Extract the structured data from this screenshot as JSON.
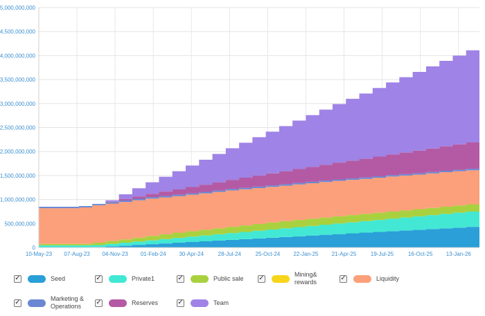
{
  "chart_data": {
    "type": "area",
    "stacked": true,
    "title": "",
    "xlabel": "",
    "ylabel": "",
    "ylim": [
      0,
      5000000000
    ],
    "y_ticks": [
      0,
      500000000,
      1000000000,
      1500000000,
      2000000000,
      2500000000,
      3000000000,
      3500000000,
      4000000000,
      4500000000,
      5000000000
    ],
    "y_tick_labels": [
      "0",
      "500,000,000",
      "1,000,000,000",
      "1,500,000,000",
      "2,000,000,000",
      "2,500,000,000",
      "3,000,000,000",
      "3,500,000,000",
      "4,000,000,000",
      "4,500,000,000",
      "5,000,000,000"
    ],
    "x_tick_labels": [
      "10-May-23",
      "07-Aug-23",
      "04-Nov-23",
      "01-Feb-24",
      "30-Apr-24",
      "28-Jul-24",
      "25-Oct-24",
      "22-Jan-25",
      "21-Apr-25",
      "19-Jul-25",
      "16-Oct-25",
      "13-Jan-26"
    ],
    "x": [
      "May-23",
      "Jun-23",
      "Jul-23",
      "Aug-23",
      "Sep-23",
      "Oct-23",
      "Nov-23",
      "Dec-23",
      "Jan-24",
      "Feb-24",
      "Mar-24",
      "Apr-24",
      "May-24",
      "Jun-24",
      "Jul-24",
      "Aug-24",
      "Sep-24",
      "Oct-24",
      "Nov-24",
      "Dec-24",
      "Jan-25",
      "Feb-25",
      "Mar-25",
      "Apr-25",
      "May-25",
      "Jun-25",
      "Jul-25",
      "Aug-25",
      "Sep-25",
      "Oct-25",
      "Nov-25",
      "Dec-25",
      "Jan-26",
      "Feb-26"
    ],
    "grid": true,
    "series": [
      {
        "name": "Seed",
        "color": "#2a9fd8",
        "values": [
          5000000,
          5000000,
          5000000,
          5000000,
          10000000,
          25000000,
          40000000,
          55000000,
          70000000,
          85000000,
          100000000,
          115000000,
          130000000,
          145000000,
          160000000,
          175000000,
          190000000,
          205000000,
          220000000,
          235000000,
          250000000,
          265000000,
          280000000,
          295000000,
          310000000,
          325000000,
          340000000,
          355000000,
          370000000,
          385000000,
          400000000,
          415000000,
          430000000,
          445000000
        ]
      },
      {
        "name": "Private1",
        "color": "#43e8d4",
        "values": [
          40000000,
          40000000,
          40000000,
          40000000,
          40000000,
          50000000,
          60000000,
          70000000,
          80000000,
          90000000,
          100000000,
          110000000,
          120000000,
          130000000,
          140000000,
          150000000,
          160000000,
          170000000,
          180000000,
          190000000,
          200000000,
          210000000,
          220000000,
          230000000,
          240000000,
          250000000,
          260000000,
          270000000,
          280000000,
          290000000,
          300000000,
          310000000,
          320000000,
          330000000
        ]
      },
      {
        "name": "Public sale",
        "color": "#a9d13f",
        "values": [
          30000000,
          30000000,
          30000000,
          30000000,
          50000000,
          60000000,
          70000000,
          80000000,
          90000000,
          100000000,
          110000000,
          115000000,
          120000000,
          125000000,
          130000000,
          135000000,
          140000000,
          145000000,
          150000000,
          150000000,
          150000000,
          150000000,
          150000000,
          150000000,
          150000000,
          150000000,
          150000000,
          150000000,
          150000000,
          150000000,
          150000000,
          150000000,
          150000000,
          150000000
        ]
      },
      {
        "name": "Mining&\nrewards",
        "color": "#f7d51a",
        "values": [
          0,
          0,
          0,
          0,
          0,
          0,
          0,
          0,
          0,
          0,
          0,
          0,
          0,
          0,
          0,
          0,
          0,
          0,
          0,
          0,
          0,
          0,
          0,
          0,
          0,
          0,
          0,
          0,
          0,
          0,
          0,
          0,
          0,
          0
        ]
      },
      {
        "name": "Liquidity",
        "color": "#fba07a",
        "values": [
          745000000,
          745000000,
          745000000,
          760000000,
          780000000,
          780000000,
          780000000,
          780000000,
          780000000,
          770000000,
          760000000,
          760000000,
          760000000,
          760000000,
          760000000,
          755000000,
          750000000,
          745000000,
          740000000,
          740000000,
          740000000,
          740000000,
          740000000,
          735000000,
          730000000,
          730000000,
          730000000,
          725000000,
          720000000,
          720000000,
          720000000,
          715000000,
          710000000,
          705000000
        ]
      },
      {
        "name": "Marketing &\nOperations",
        "color": "#6b87d4",
        "values": [
          30000000,
          30000000,
          30000000,
          30000000,
          30000000,
          30000000,
          30000000,
          30000000,
          30000000,
          30000000,
          30000000,
          30000000,
          30000000,
          30000000,
          30000000,
          30000000,
          30000000,
          30000000,
          30000000,
          30000000,
          30000000,
          30000000,
          30000000,
          30000000,
          30000000,
          30000000,
          30000000,
          30000000,
          30000000,
          30000000,
          30000000,
          30000000,
          30000000,
          30000000
        ]
      },
      {
        "name": "Reserves",
        "color": "#b45aa4",
        "values": [
          0,
          0,
          0,
          0,
          0,
          10000000,
          30000000,
          50000000,
          70000000,
          90000000,
          110000000,
          130000000,
          150000000,
          170000000,
          190000000,
          210000000,
          230000000,
          250000000,
          270000000,
          290000000,
          310000000,
          330000000,
          350000000,
          370000000,
          390000000,
          410000000,
          430000000,
          450000000,
          470000000,
          490000000,
          510000000,
          530000000,
          550000000,
          600000000
        ]
      },
      {
        "name": "Team",
        "color": "#9f83e6",
        "values": [
          0,
          0,
          0,
          0,
          0,
          30000000,
          100000000,
          170000000,
          240000000,
          310000000,
          380000000,
          450000000,
          520000000,
          590000000,
          660000000,
          730000000,
          800000000,
          870000000,
          940000000,
          1010000000,
          1080000000,
          1150000000,
          1220000000,
          1290000000,
          1360000000,
          1430000000,
          1500000000,
          1570000000,
          1640000000,
          1710000000,
          1780000000,
          1850000000,
          1920000000,
          1990000000
        ]
      }
    ]
  },
  "legend": {
    "checkbox_mark": "✓",
    "items": [
      {
        "label": "Seed",
        "color": "#2a9fd8"
      },
      {
        "label": "Private1",
        "color": "#43e8d4"
      },
      {
        "label": "Public sale",
        "color": "#a9d13f"
      },
      {
        "label": "Mining&\nrewards",
        "color": "#f7d51a"
      },
      {
        "label": "Liquidity",
        "color": "#fba07a"
      },
      {
        "label": "Marketing &\nOperations",
        "color": "#6b87d4"
      },
      {
        "label": "Reserves",
        "color": "#b45aa4"
      },
      {
        "label": "Team",
        "color": "#9f83e6"
      }
    ]
  }
}
